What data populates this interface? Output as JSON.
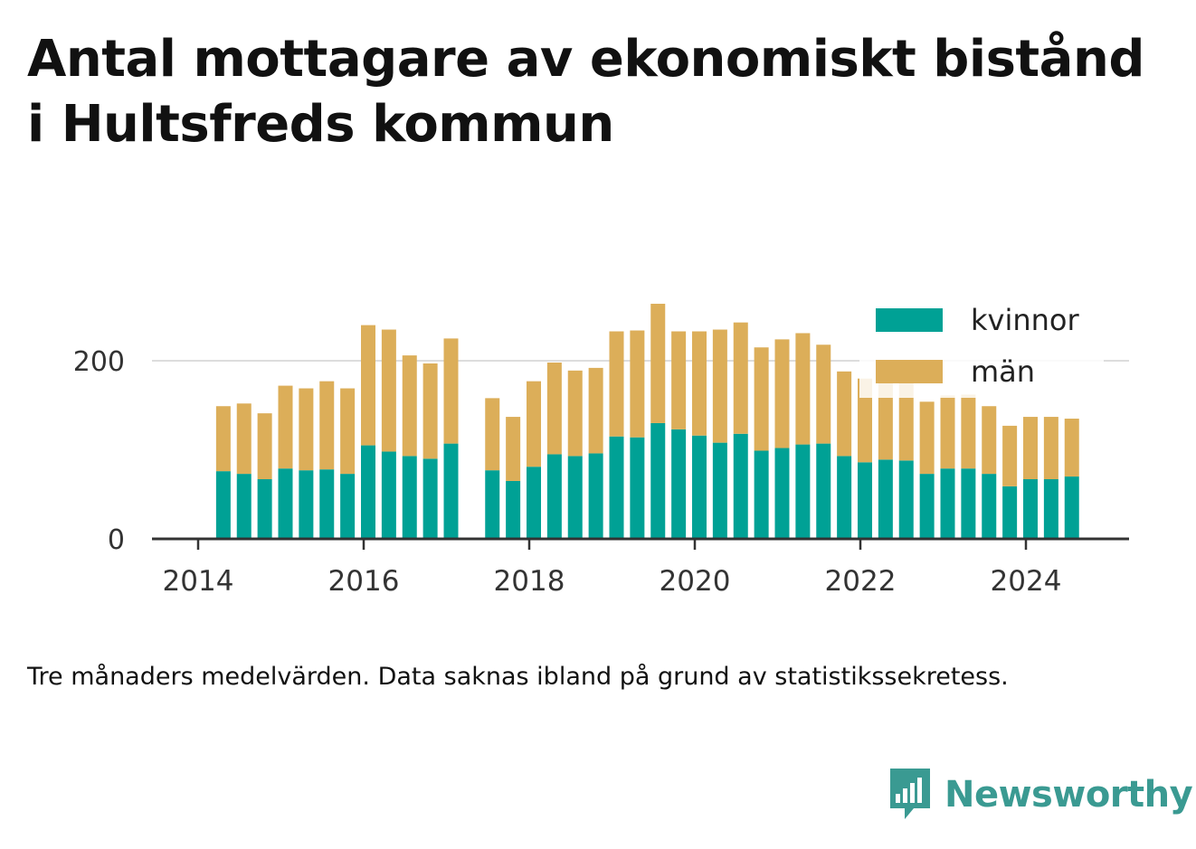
{
  "title": "Antal mottagare av ekonomiskt bistånd i Hultsfreds kommun",
  "caption": "Tre månaders medelvärden. Data saknas ibland på grund av statistikssekretess.",
  "brand": "Newsworthy",
  "colors": {
    "kvinnor": "#00a195",
    "man": "#dcae59",
    "grid": "#dddddd",
    "axis": "#333333",
    "brand": "#3a9a92"
  },
  "chart_data": {
    "type": "bar",
    "stacked": true,
    "x_ticks": [
      "2014",
      "2016",
      "2018",
      "2020",
      "2022",
      "2024"
    ],
    "y_ticks": [
      "0",
      "200"
    ],
    "ylim": [
      0,
      280
    ],
    "grid": true,
    "legend_position": "top-right",
    "periods": [
      "2014-Q2",
      "2014-Q3",
      "2014-Q4",
      "2015-Q1",
      "2015-Q2",
      "2015-Q3",
      "2015-Q4",
      "2016-Q1",
      "2016-Q2",
      "2016-Q3",
      "2016-Q4",
      "2017-Q1",
      "2017-Q2",
      "2017-Q3",
      "2017-Q4",
      "2018-Q1",
      "2018-Q2",
      "2018-Q3",
      "2018-Q4",
      "2019-Q1",
      "2019-Q2",
      "2019-Q3",
      "2019-Q4",
      "2020-Q1",
      "2020-Q2",
      "2020-Q3",
      "2020-Q4",
      "2021-Q1",
      "2021-Q2",
      "2021-Q3",
      "2021-Q4",
      "2022-Q1",
      "2022-Q2",
      "2022-Q3",
      "2022-Q4",
      "2023-Q1",
      "2023-Q2",
      "2023-Q3",
      "2023-Q4",
      "2024-Q1",
      "2024-Q2",
      "2024-Q3"
    ],
    "series": [
      {
        "name": "kvinnor",
        "values": [
          76,
          73,
          67,
          79,
          77,
          78,
          73,
          105,
          98,
          93,
          90,
          107,
          null,
          77,
          65,
          81,
          95,
          93,
          96,
          115,
          114,
          130,
          123,
          116,
          108,
          118,
          99,
          102,
          106,
          107,
          93,
          86,
          89,
          88,
          73,
          79,
          79,
          73,
          59,
          67,
          67,
          70
        ]
      },
      {
        "name": "män",
        "values": [
          73,
          79,
          74,
          93,
          92,
          99,
          96,
          135,
          137,
          113,
          107,
          118,
          null,
          81,
          72,
          96,
          103,
          96,
          96,
          118,
          120,
          134,
          110,
          117,
          127,
          125,
          116,
          122,
          125,
          111,
          95,
          94,
          91,
          92,
          81,
          82,
          83,
          76,
          68,
          70,
          70,
          65
        ]
      }
    ]
  }
}
